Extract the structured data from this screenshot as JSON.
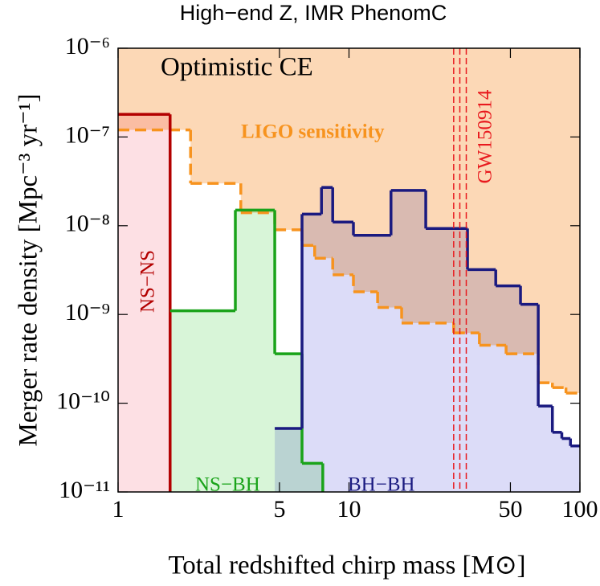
{
  "chart_data": {
    "type": "step",
    "title": "High−end Z,   IMR PhenomC",
    "x_label": "Total redshifted chirp mass  [M⊙]",
    "y_label": "Merger rate density  [Mpc⁻³ yr⁻¹]",
    "xscale": "log",
    "yscale": "log",
    "xlim": [
      1,
      100
    ],
    "ylim": [
      1e-11,
      1e-06
    ],
    "xticks": [
      1,
      5,
      10,
      50,
      100
    ],
    "yticks": [
      {
        "value": 1e-06,
        "label": "10⁻⁶"
      },
      {
        "value": 1e-07,
        "label": "10⁻⁷"
      },
      {
        "value": 1e-08,
        "label": "10⁻⁸"
      },
      {
        "value": 1e-09,
        "label": "10⁻⁹"
      },
      {
        "value": 1e-10,
        "label": "10⁻¹⁰"
      },
      {
        "value": 1e-11,
        "label": "10⁻¹¹"
      }
    ],
    "region_label": "Optimistic CE",
    "series": [
      {
        "name": "LIGO sensitivity",
        "color": "#f7931e",
        "style": "dashed",
        "fill": "#fcd8b6",
        "fill_region": "above",
        "bins": [
          1,
          2.06,
          3.4,
          4.77,
          6.26,
          7.1,
          8.5,
          10.45,
          13.3,
          16.9,
          28.4,
          36.7,
          47.9,
          66,
          76,
          87,
          100
        ],
        "values": [
          1.2e-07,
          3e-08,
          1.4e-08,
          9e-09,
          6e-09,
          4.3e-09,
          2.8e-09,
          1.8e-09,
          1.2e-09,
          8e-10,
          6.2e-10,
          4.5e-10,
          3.6e-10,
          1.7e-10,
          1.5e-10,
          1.3e-10
        ]
      },
      {
        "name": "NS−NS",
        "color": "#b30000",
        "style": "solid",
        "fill": "#fde0e4",
        "fill_region": "below",
        "bins": [
          1,
          1.68
        ],
        "values": [
          1.8e-07
        ]
      },
      {
        "name": "NS−BH",
        "color": "#1aa31a",
        "style": "solid",
        "fill": "#d8f5d8",
        "fill_region": "below",
        "bins": [
          1.68,
          3.22,
          4.77,
          6.26,
          7.7
        ],
        "values": [
          1.1e-09,
          1.5e-08,
          3.6e-10,
          2.1e-11
        ]
      },
      {
        "name": "BH−BH",
        "color": "#1a1a80",
        "style": "solid",
        "fill": "#dcdcf8",
        "fill_region": "below",
        "bins": [
          4.77,
          6.26,
          7.6,
          8.5,
          10.45,
          15.2,
          21.5,
          32.6,
          43.2,
          55.3,
          66,
          76,
          83.5,
          91,
          100
        ],
        "values": [
          5.2e-11,
          1.35e-08,
          2.7e-08,
          1.1e-08,
          7.8e-09,
          2.5e-08,
          9.3e-09,
          3.2e-09,
          2.1e-09,
          1.3e-09,
          9.3e-11,
          4.7e-11,
          4e-11,
          3.3e-11
        ]
      }
    ],
    "event_lines": {
      "label": "GW150914",
      "color": "#e8191e",
      "x": [
        28.4,
        30.2,
        32.2
      ]
    }
  }
}
